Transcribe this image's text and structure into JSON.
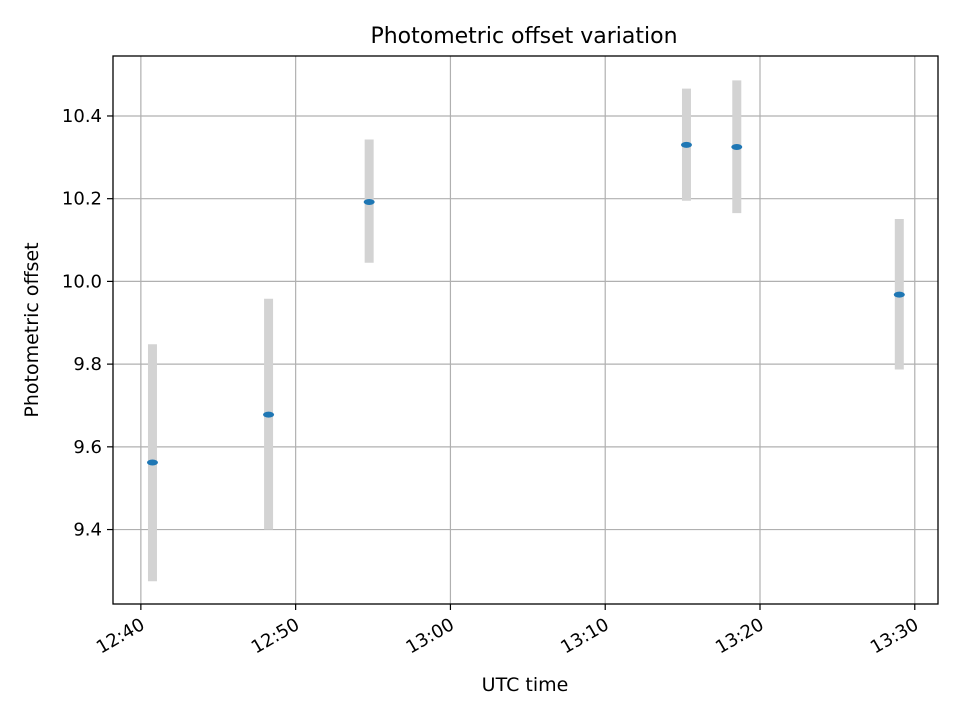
{
  "chart_data": {
    "type": "scatter",
    "title": "Photometric offset variation",
    "xlabel": "UTC time",
    "ylabel": "Photometric offset",
    "grid": true,
    "x_ticks": [
      "12:40",
      "12:50",
      "13:00",
      "13:10",
      "13:20",
      "13:30"
    ],
    "y_ticks": [
      "9.4",
      "9.6",
      "9.8",
      "10.0",
      "10.2",
      "10.4"
    ],
    "series": [
      {
        "x": [
          "12:40:45",
          "12:48:15",
          "12:54:45",
          "13:15:15",
          "13:18:30",
          "13:29:00"
        ],
        "y": [
          9.562,
          9.678,
          10.192,
          10.33,
          10.325,
          9.968
        ],
        "yerr_low": [
          9.275,
          9.4,
          10.045,
          10.195,
          10.165,
          9.787
        ],
        "yerr_high": [
          9.848,
          9.958,
          10.343,
          10.466,
          10.486,
          10.151
        ]
      }
    ],
    "colors": {
      "marker": "#1f77b4",
      "errorbar": "#d3d3d3",
      "grid": "#b0b0b0"
    }
  }
}
